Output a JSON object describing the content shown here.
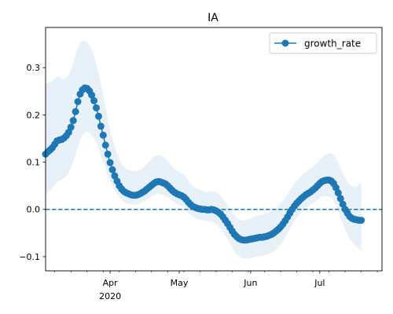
{
  "chart_data": {
    "type": "line",
    "title": "IA",
    "xlabel": "",
    "ylabel": "",
    "xlim": [
      "2020-03-04",
      "2020-07-28"
    ],
    "ylim": [
      -0.13,
      0.385
    ],
    "x_ticks": [
      {
        "date": "2020-04-01",
        "label": "Apr",
        "sublabel": "2020"
      },
      {
        "date": "2020-05-01",
        "label": "May",
        "sublabel": ""
      },
      {
        "date": "2020-06-01",
        "label": "Jun",
        "sublabel": ""
      },
      {
        "date": "2020-07-01",
        "label": "Jul",
        "sublabel": ""
      }
    ],
    "y_ticks": [
      {
        "value": -0.1,
        "label": "−0.1"
      },
      {
        "value": 0.0,
        "label": "0.0"
      },
      {
        "value": 0.1,
        "label": "0.1"
      },
      {
        "value": 0.2,
        "label": "0.2"
      },
      {
        "value": 0.3,
        "label": "0.3"
      }
    ],
    "reference_line": {
      "y": 0.0,
      "style": "dashed",
      "color": "#1f77b4"
    },
    "legend": {
      "position": "top-right",
      "entries": [
        "growth_rate"
      ]
    },
    "grid": false,
    "series": [
      {
        "name": "growth_rate",
        "color": "#1f77b4",
        "band_color": "#1f77b4",
        "start_date": "2020-03-04",
        "step_days": 1,
        "values": [
          0.117,
          0.122,
          0.126,
          0.131,
          0.138,
          0.145,
          0.147,
          0.148,
          0.151,
          0.156,
          0.163,
          0.174,
          0.188,
          0.207,
          0.228,
          0.244,
          0.253,
          0.257,
          0.256,
          0.251,
          0.242,
          0.23,
          0.215,
          0.197,
          0.176,
          0.157,
          0.136,
          0.117,
          0.099,
          0.084,
          0.071,
          0.06,
          0.05,
          0.043,
          0.038,
          0.035,
          0.033,
          0.031,
          0.03,
          0.03,
          0.031,
          0.033,
          0.036,
          0.039,
          0.043,
          0.047,
          0.051,
          0.055,
          0.058,
          0.059,
          0.058,
          0.056,
          0.054,
          0.05,
          0.045,
          0.04,
          0.036,
          0.033,
          0.031,
          0.029,
          0.026,
          0.021,
          0.015,
          0.01,
          0.006,
          0.004,
          0.002,
          0.001,
          0.0,
          0.0,
          -0.001,
          -0.001,
          0.0,
          -0.001,
          -0.003,
          -0.006,
          -0.01,
          -0.016,
          -0.023,
          -0.03,
          -0.038,
          -0.046,
          -0.053,
          -0.058,
          -0.062,
          -0.064,
          -0.065,
          -0.065,
          -0.064,
          -0.063,
          -0.062,
          -0.061,
          -0.06,
          -0.059,
          -0.059,
          -0.058,
          -0.057,
          -0.055,
          -0.053,
          -0.05,
          -0.046,
          -0.042,
          -0.037,
          -0.031,
          -0.024,
          -0.016,
          -0.008,
          0.0,
          0.007,
          0.013,
          0.018,
          0.023,
          0.027,
          0.031,
          0.034,
          0.037,
          0.041,
          0.045,
          0.05,
          0.055,
          0.059,
          0.061,
          0.062,
          0.062,
          0.06,
          0.055,
          0.046,
          0.035,
          0.023,
          0.011,
          0.0,
          -0.008,
          -0.015,
          -0.019,
          -0.021,
          -0.022,
          -0.023,
          -0.023
        ],
        "lower": [
          0.031,
          0.036,
          0.04,
          0.046,
          0.052,
          0.058,
          0.061,
          0.063,
          0.066,
          0.071,
          0.078,
          0.088,
          0.1,
          0.115,
          0.132,
          0.146,
          0.156,
          0.162,
          0.164,
          0.163,
          0.158,
          0.151,
          0.141,
          0.129,
          0.115,
          0.101,
          0.087,
          0.072,
          0.06,
          0.049,
          0.04,
          0.032,
          0.025,
          0.02,
          0.016,
          0.014,
          0.012,
          0.011,
          0.01,
          0.01,
          0.011,
          0.013,
          0.015,
          0.018,
          0.021,
          0.024,
          0.027,
          0.03,
          0.032,
          0.033,
          0.032,
          0.031,
          0.029,
          0.026,
          0.022,
          0.018,
          0.014,
          0.011,
          0.009,
          0.007,
          0.004,
          -0.001,
          -0.007,
          -0.012,
          -0.016,
          -0.018,
          -0.02,
          -0.022,
          -0.023,
          -0.024,
          -0.025,
          -0.026,
          -0.026,
          -0.028,
          -0.031,
          -0.035,
          -0.04,
          -0.047,
          -0.055,
          -0.063,
          -0.072,
          -0.081,
          -0.089,
          -0.095,
          -0.099,
          -0.102,
          -0.104,
          -0.104,
          -0.104,
          -0.103,
          -0.102,
          -0.101,
          -0.1,
          -0.099,
          -0.098,
          -0.097,
          -0.096,
          -0.094,
          -0.092,
          -0.089,
          -0.085,
          -0.08,
          -0.074,
          -0.067,
          -0.059,
          -0.05,
          -0.041,
          -0.032,
          -0.024,
          -0.017,
          -0.011,
          -0.005,
          -0.001,
          0.003,
          0.006,
          0.009,
          0.013,
          0.016,
          0.02,
          0.024,
          0.027,
          0.028,
          0.028,
          0.027,
          0.024,
          0.018,
          0.008,
          -0.004,
          -0.017,
          -0.03,
          -0.043,
          -0.053,
          -0.062,
          -0.069,
          -0.074,
          -0.079,
          -0.084,
          -0.088
        ],
        "upper": [
          0.265,
          0.268,
          0.27,
          0.272,
          0.276,
          0.281,
          0.28,
          0.276,
          0.276,
          0.279,
          0.285,
          0.295,
          0.309,
          0.327,
          0.342,
          0.352,
          0.356,
          0.357,
          0.354,
          0.348,
          0.338,
          0.325,
          0.308,
          0.288,
          0.265,
          0.242,
          0.216,
          0.191,
          0.168,
          0.149,
          0.132,
          0.118,
          0.106,
          0.097,
          0.09,
          0.086,
          0.084,
          0.082,
          0.081,
          0.081,
          0.082,
          0.084,
          0.087,
          0.091,
          0.096,
          0.101,
          0.106,
          0.111,
          0.114,
          0.115,
          0.114,
          0.111,
          0.108,
          0.103,
          0.097,
          0.091,
          0.086,
          0.082,
          0.079,
          0.076,
          0.073,
          0.067,
          0.06,
          0.054,
          0.049,
          0.046,
          0.043,
          0.041,
          0.039,
          0.038,
          0.037,
          0.037,
          0.038,
          0.038,
          0.036,
          0.033,
          0.029,
          0.023,
          0.016,
          0.009,
          0.001,
          -0.007,
          -0.014,
          -0.019,
          -0.022,
          -0.024,
          -0.024,
          -0.023,
          -0.021,
          -0.019,
          -0.017,
          -0.015,
          -0.013,
          -0.012,
          -0.011,
          -0.01,
          -0.008,
          -0.006,
          -0.004,
          -0.001,
          0.003,
          0.007,
          0.012,
          0.018,
          0.025,
          0.032,
          0.04,
          0.048,
          0.055,
          0.061,
          0.066,
          0.071,
          0.075,
          0.079,
          0.082,
          0.086,
          0.09,
          0.094,
          0.099,
          0.105,
          0.11,
          0.114,
          0.117,
          0.119,
          0.119,
          0.116,
          0.109,
          0.099,
          0.088,
          0.077,
          0.067,
          0.059,
          0.052,
          0.049,
          0.048,
          0.049,
          0.052,
          0.056
        ]
      }
    ]
  }
}
